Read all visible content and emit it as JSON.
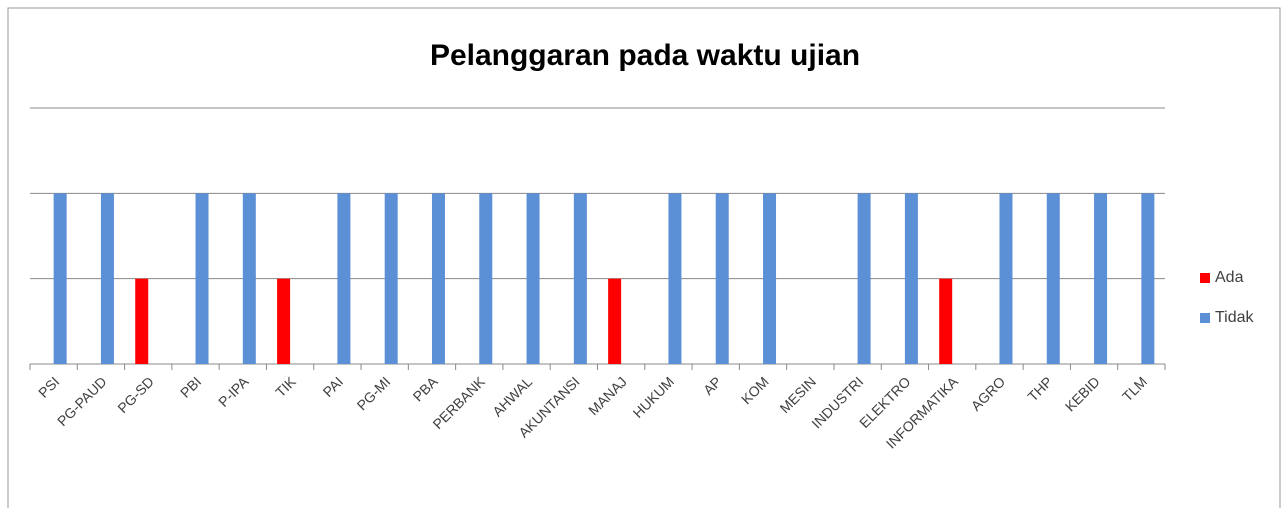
{
  "chart_data": {
    "type": "bar",
    "title": "Pelanggaran pada waktu ujian",
    "categories": [
      "PSI",
      "PG-PAUD",
      "PG-SD",
      "PBI",
      "P-IPA",
      "TIK",
      "PAI",
      "PG-MI",
      "PBA",
      "PERBANK",
      "AHWAL",
      "AKUNTANSI",
      "MANAJ",
      "HUKUM",
      "AP",
      "KOM",
      "MESIN",
      "INDUSTRI",
      "ELEKTRO",
      "INFORMATIKA",
      "AGRO",
      "THP",
      "KEBID",
      "TLM"
    ],
    "series": [
      {
        "name": "Ada",
        "color": "#ff0000",
        "values": [
          null,
          null,
          1,
          null,
          null,
          1,
          null,
          null,
          null,
          null,
          null,
          null,
          1,
          null,
          null,
          null,
          null,
          null,
          null,
          1,
          null,
          null,
          null,
          null
        ]
      },
      {
        "name": "Tidak",
        "color": "#5b8fd6",
        "values": [
          2,
          2,
          null,
          2,
          2,
          null,
          2,
          2,
          2,
          2,
          2,
          2,
          null,
          2,
          2,
          2,
          null,
          2,
          2,
          null,
          2,
          2,
          2,
          2
        ]
      }
    ],
    "ylim": [
      0,
      3
    ],
    "yticks": [
      0,
      1,
      2,
      3
    ],
    "grid": true,
    "legend": "right"
  }
}
